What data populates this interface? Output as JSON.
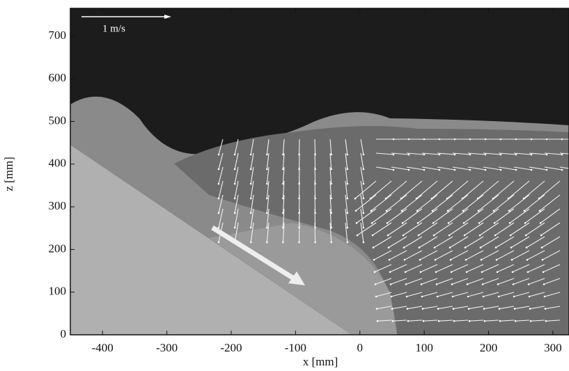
{
  "chart_data": {
    "type": "field",
    "xlabel": "x [mm]",
    "ylabel": "z [mm]",
    "annotation": "1 m/s",
    "xlim": [
      -450,
      325
    ],
    "ylim": [
      0,
      765
    ],
    "xticks": [
      -400,
      -300,
      -200,
      -100,
      0,
      100,
      200,
      300
    ],
    "yticks": [
      0,
      100,
      200,
      300,
      400,
      500,
      600,
      700
    ]
  }
}
